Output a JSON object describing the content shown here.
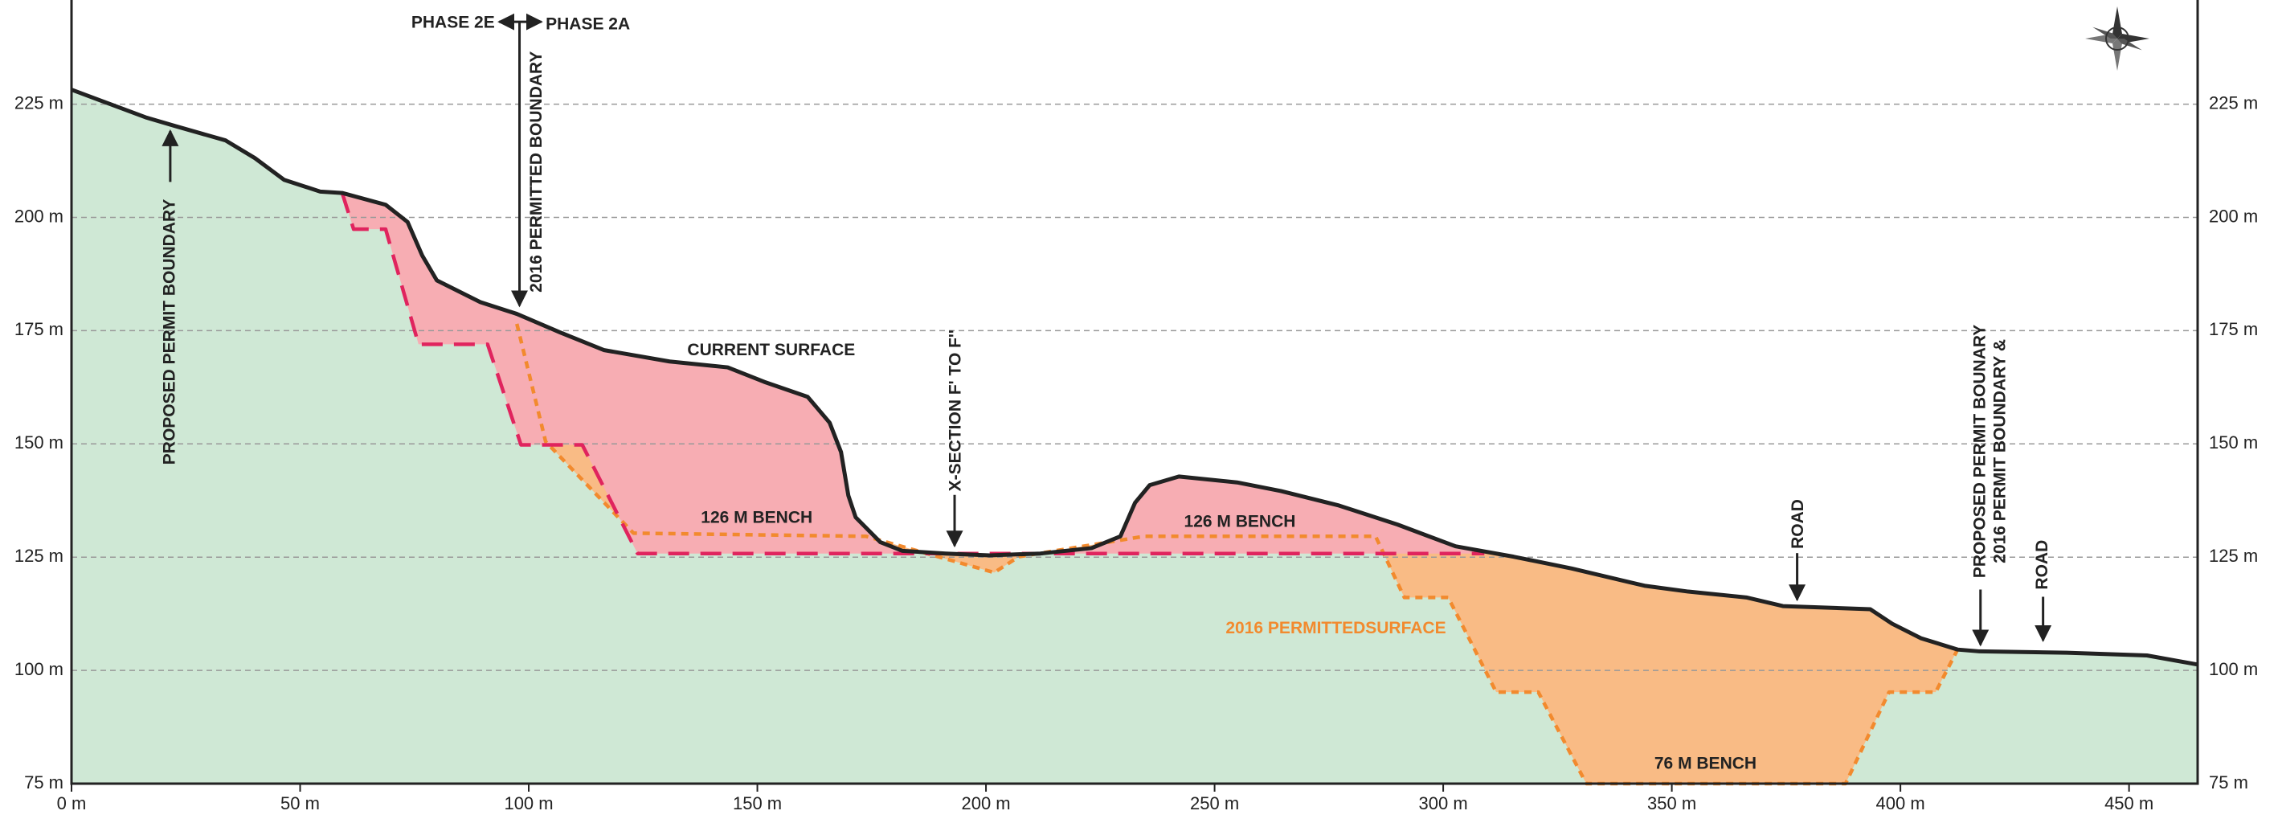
{
  "chart_data": {
    "type": "line",
    "xlim": [
      0,
      465
    ],
    "ylim": [
      75,
      248
    ],
    "xticks": [
      {
        "value": 0,
        "label": "0 m"
      },
      {
        "value": 50,
        "label": "50 m"
      },
      {
        "value": 100,
        "label": "100 m"
      },
      {
        "value": 150,
        "label": "150 m"
      },
      {
        "value": 200,
        "label": "200 m"
      },
      {
        "value": 250,
        "label": "250 m"
      },
      {
        "value": 300,
        "label": "300 m"
      },
      {
        "value": 350,
        "label": "350 m"
      },
      {
        "value": 400,
        "label": "400 m"
      },
      {
        "value": 450,
        "label": "450 m"
      }
    ],
    "yticks": [
      {
        "value": 75,
        "label": "75 m"
      },
      {
        "value": 100,
        "label": "100 m"
      },
      {
        "value": 125,
        "label": "125 m"
      },
      {
        "value": 150,
        "label": "150 m"
      },
      {
        "value": 175,
        "label": "175 m"
      },
      {
        "value": 200,
        "label": "200 m"
      },
      {
        "value": 225,
        "label": "225 m"
      }
    ],
    "grid": true,
    "series": [
      {
        "color": "#222222",
        "fill": "#cfe8d5",
        "x": [
          0,
          16.2,
          22.6,
          33.7,
          40.1,
          46.5,
          54.4,
          59.2,
          68.7,
          73.5,
          76.7,
          79.9,
          89.4,
          97.4,
          106.9,
          116.5,
          130.8,
          143.5,
          151.5,
          161,
          165.8,
          168.3,
          169.9,
          171.5,
          176.9,
          181.7,
          191.2,
          200.8,
          211.9,
          223.1,
          229.4,
          232.6,
          235.8,
          242.2,
          254.9,
          264.5,
          277.2,
          290,
          302.7,
          315.4,
          328.1,
          344,
          353.6,
          366.3,
          374.3,
          393.4,
          398.2,
          404.5,
          412.5,
          417.3,
          436.4,
          453.9,
          465
        ],
        "values": [
          228.2,
          222.1,
          220.2,
          217,
          213.1,
          208.3,
          205.7,
          205.4,
          202.8,
          199,
          191.6,
          186.1,
          181.3,
          178.7,
          174.6,
          170.7,
          168.2,
          166.9,
          163.7,
          160.4,
          154.7,
          148.2,
          138.6,
          133.8,
          128.3,
          126.4,
          125.8,
          125.4,
          125.8,
          127,
          129.6,
          137,
          140.9,
          142.8,
          141.5,
          139.6,
          136.4,
          132.2,
          127.4,
          125.1,
          122.5,
          118.7,
          117.4,
          116.1,
          114.2,
          113.5,
          110.3,
          107.1,
          104.6,
          104.2,
          103.9,
          103.3,
          101.3
        ]
      },
      {
        "color": "#e0245e",
        "fill": "#f7adb3",
        "x": [
          59.2,
          61.7,
          68.7,
          75.9,
          91,
          98.3,
          111.7,
          123.8,
          309
        ],
        "values": [
          205.4,
          197.4,
          197.4,
          172,
          172,
          149.8,
          149.8,
          125.8,
          125.8
        ]
      },
      {
        "color": "#f28a2e",
        "fill": "#f9bb85",
        "x": [
          97.4,
          103.7,
          122.9,
          173.8,
          201.8,
          207.2,
          234.6,
          285.2,
          291.5,
          301.1,
          311.6,
          320.8,
          331.3,
          388,
          397.5,
          407.7,
          412.5
        ],
        "values": [
          176.5,
          150.5,
          130.3,
          129.6,
          121.6,
          125.1,
          129.6,
          129.6,
          116.1,
          116.1,
          95.2,
          95.2,
          75,
          75,
          95.2,
          95.2,
          104.6
        ]
      }
    ],
    "annotations": [
      "PHASE 2E",
      "PHASE 2A",
      "2016 PERMITTED BOUNDARY",
      "PROPOSED PERMIT BOUNDARY",
      "CURRENT SURFACE",
      "X-SECTION F' TO F''",
      "126 M BENCH",
      "126 M BENCH",
      "2016 PERMITTEDSURFACE",
      "ROAD",
      "2016 PERMIT BOUNDARY &",
      "PROPOSED PERMIT BOUNARY",
      "ROAD",
      "76 M BENCH"
    ]
  }
}
